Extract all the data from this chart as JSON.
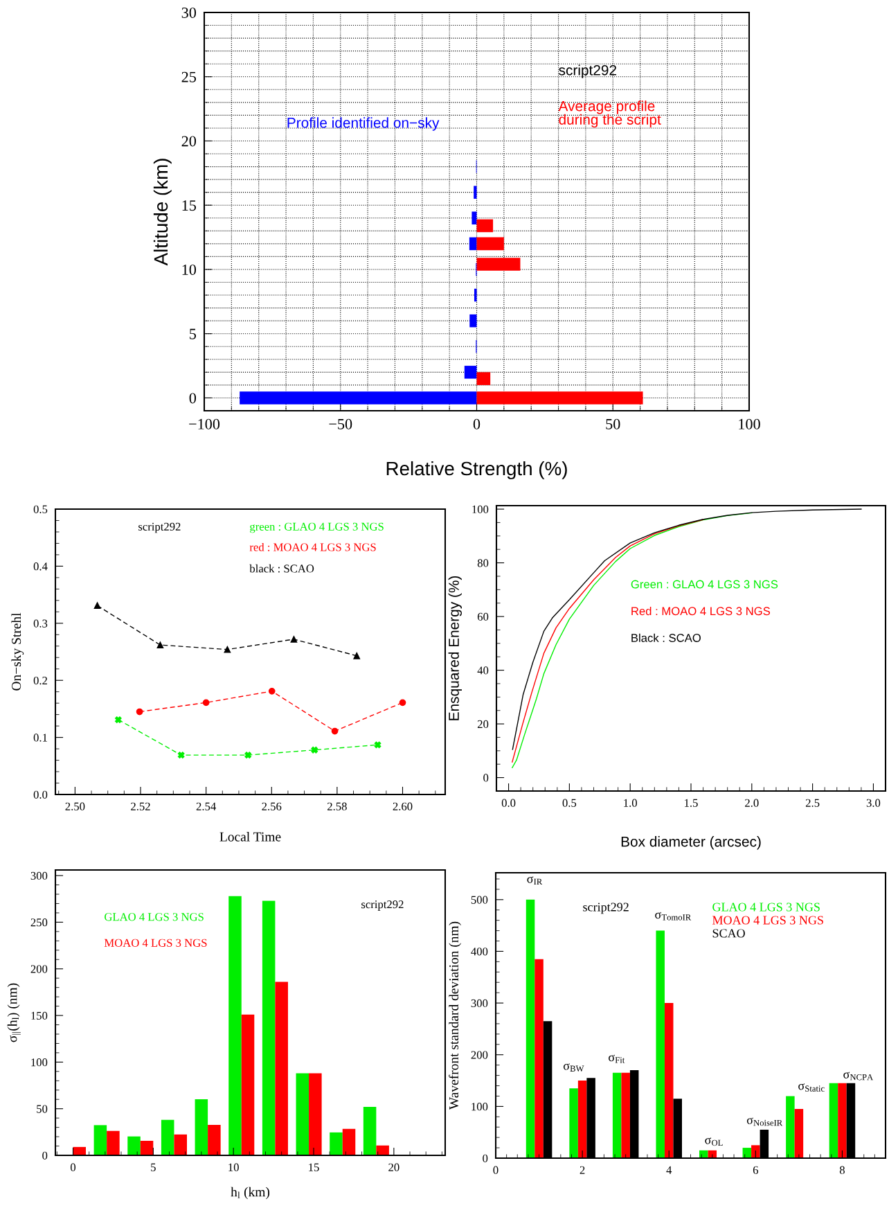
{
  "chart_data": [
    {
      "type": "bar",
      "orientation": "horizontal",
      "xlabel": "Relative Strength (%)",
      "ylabel": "Altitude (km)",
      "annotations": [
        "script292"
      ],
      "grid": true,
      "series": [
        {
          "name": "Profile identified on−sky",
          "color": "#0000ff",
          "x": [
            0,
            2,
            4,
            6,
            8,
            10,
            12,
            14,
            16,
            18
          ],
          "values": [
            -87,
            -4.5,
            -0.3,
            -2.6,
            -0.9,
            -0.3,
            -2.7,
            -1.8,
            -1.1,
            -0.2
          ]
        },
        {
          "name": "Average profile\nduring the script",
          "color": "#ff0000",
          "x": [
            0,
            1.5,
            10.4,
            12,
            13.4
          ],
          "values": [
            61,
            5,
            16,
            10,
            6
          ]
        }
      ],
      "xlim": [
        -100,
        100
      ],
      "ylim": [
        -1,
        30
      ],
      "xticks": [
        {
          "value": -100,
          "label": "−100"
        },
        {
          "value": -90,
          "label": null
        },
        {
          "value": -80,
          "label": null
        },
        {
          "value": -70,
          "label": null
        },
        {
          "value": -60,
          "label": null
        },
        {
          "value": -50,
          "label": "−50"
        },
        {
          "value": -40,
          "label": null
        },
        {
          "value": -30,
          "label": null
        },
        {
          "value": -20,
          "label": null
        },
        {
          "value": -10,
          "label": null
        },
        0,
        {
          "value": 10,
          "label": null
        },
        {
          "value": 20,
          "label": null
        },
        {
          "value": 30,
          "label": null
        },
        {
          "value": 40,
          "label": null
        },
        50,
        {
          "value": 60,
          "label": null
        },
        {
          "value": 70,
          "label": null
        },
        {
          "value": 80,
          "label": null
        },
        {
          "value": 90,
          "label": null
        },
        100
      ],
      "yticks": [
        0,
        {
          "value": 1,
          "label": null
        },
        {
          "value": 2,
          "label": null
        },
        {
          "value": 3,
          "label": null
        },
        {
          "value": 4,
          "label": null
        },
        5,
        {
          "value": 6,
          "label": null
        },
        {
          "value": 7,
          "label": null
        },
        {
          "value": 8,
          "label": null
        },
        {
          "value": 9,
          "label": null
        },
        10,
        {
          "value": 11,
          "label": null
        },
        {
          "value": 12,
          "label": null
        },
        {
          "value": 13,
          "label": null
        },
        {
          "value": 14,
          "label": null
        },
        15,
        {
          "value": 16,
          "label": null
        },
        {
          "value": 17,
          "label": null
        },
        {
          "value": 18,
          "label": null
        },
        {
          "value": 19,
          "label": null
        },
        20,
        {
          "value": 21,
          "label": null
        },
        {
          "value": 22,
          "label": null
        },
        {
          "value": 23,
          "label": null
        },
        {
          "value": 24,
          "label": null
        },
        25,
        {
          "value": 26,
          "label": null
        },
        {
          "value": 27,
          "label": null
        },
        {
          "value": 28,
          "label": null
        },
        {
          "value": 29,
          "label": null
        },
        30
      ]
    },
    {
      "type": "line",
      "line_style": "dashed",
      "xlabel": "Local Time",
      "ylabel": "On−sky Strehl",
      "annotations": [
        "script292"
      ],
      "series": [
        {
          "name": "green : GLAO 4 LGS 3 NGS",
          "color": "#00ee00",
          "marker": "cross",
          "x": [
            2.5132,
            2.5324,
            2.5528,
            2.5731,
            2.5924
          ],
          "values": [
            0.131,
            0.069,
            0.069,
            0.078,
            0.087
          ]
        },
        {
          "name": "red : MOAO 4 LGS 3 NGS",
          "color": "#ff0000",
          "marker": "circle",
          "x": [
            2.5197,
            2.54,
            2.5601,
            2.5793,
            2.6
          ],
          "values": [
            0.145,
            0.161,
            0.181,
            0.111,
            0.161
          ]
        },
        {
          "name": "black : SCAO",
          "color": "#000000",
          "marker": "triangle",
          "x": [
            2.5068,
            2.526,
            2.5465,
            2.5668,
            2.586
          ],
          "values": [
            0.331,
            0.262,
            0.254,
            0.272,
            0.243
          ]
        }
      ],
      "xlim": [
        2.494,
        2.613
      ],
      "ylim": [
        0,
        0.5
      ],
      "xticks": [
        {
          "value": 2.495,
          "label": null
        },
        {
          "value": 2.5,
          "label": "2.50"
        },
        {
          "value": 2.505,
          "label": null
        },
        {
          "value": 2.51,
          "label": null
        },
        {
          "value": 2.515,
          "label": null
        },
        2.52,
        {
          "value": 2.525,
          "label": null
        },
        {
          "value": 2.53,
          "label": null
        },
        {
          "value": 2.535,
          "label": null
        },
        2.54,
        {
          "value": 2.545,
          "label": null
        },
        {
          "value": 2.55,
          "label": null
        },
        {
          "value": 2.555,
          "label": null
        },
        2.56,
        {
          "value": 2.565,
          "label": null
        },
        {
          "value": 2.57,
          "label": null
        },
        {
          "value": 2.575,
          "label": null
        },
        2.58,
        {
          "value": 2.585,
          "label": null
        },
        {
          "value": 2.59,
          "label": null
        },
        {
          "value": 2.595,
          "label": null
        },
        {
          "value": 2.6,
          "label": "2.60"
        },
        {
          "value": 2.605,
          "label": null
        },
        {
          "value": 2.61,
          "label": null
        }
      ],
      "yticks": [
        {
          "value": 0,
          "label": "0.0"
        },
        {
          "value": 0.02,
          "label": null
        },
        {
          "value": 0.04,
          "label": null
        },
        {
          "value": 0.06,
          "label": null
        },
        {
          "value": 0.08,
          "label": null
        },
        0.1,
        {
          "value": 0.12,
          "label": null
        },
        {
          "value": 0.14,
          "label": null
        },
        {
          "value": 0.16,
          "label": null
        },
        {
          "value": 0.18,
          "label": null
        },
        0.2,
        {
          "value": 0.22,
          "label": null
        },
        {
          "value": 0.24,
          "label": null
        },
        {
          "value": 0.26,
          "label": null
        },
        {
          "value": 0.28,
          "label": null
        },
        0.3,
        {
          "value": 0.32,
          "label": null
        },
        {
          "value": 0.34,
          "label": null
        },
        {
          "value": 0.36,
          "label": null
        },
        {
          "value": 0.38,
          "label": null
        },
        0.4,
        {
          "value": 0.42,
          "label": null
        },
        {
          "value": 0.44,
          "label": null
        },
        {
          "value": 0.46,
          "label": null
        },
        {
          "value": 0.48,
          "label": null
        },
        0.5
      ]
    },
    {
      "type": "line",
      "line_style": "solid",
      "xlabel": "Box diameter (arcsec)",
      "ylabel": "Ensquared Energy (%)",
      "series": [
        {
          "name": "Green : GLAO 4 LGS 3 NGS",
          "color": "#00ee00",
          "x": [
            0.03,
            0.065,
            0.13,
            0.23,
            0.29,
            0.39,
            0.5,
            0.7,
            0.88,
            1.0,
            1.2,
            1.4,
            1.6,
            1.8,
            2.0
          ],
          "values": [
            3.7,
            6.5,
            15.8,
            29.5,
            38.7,
            49.5,
            59,
            71.6,
            80.5,
            85.3,
            90.2,
            93.5,
            96,
            97.6,
            98.6
          ]
        },
        {
          "name": "Red : MOAO 4 LGS 3 NGS",
          "color": "#ff0000",
          "x": [
            0.03,
            0.116,
            0.19,
            0.29,
            0.39,
            0.5,
            0.7,
            0.88,
            1.0,
            1.2,
            1.4,
            1.6
          ],
          "values": [
            5.8,
            20,
            31.6,
            46.3,
            55.8,
            63,
            73.7,
            82,
            86.3,
            90.8,
            93.8,
            96.1
          ]
        },
        {
          "name": "Black : SCAO",
          "color": "#000000",
          "x": [
            0.033,
            0.12,
            0.2,
            0.29,
            0.36,
            0.5,
            0.7,
            0.79,
            1.0,
            1.2,
            1.4,
            1.6,
            1.8,
            2.0,
            2.2,
            2.5,
            2.9
          ],
          "values": [
            10.5,
            31,
            43,
            54.5,
            59.5,
            66.3,
            76.3,
            80.8,
            87.4,
            91.2,
            94,
            96.2,
            97.7,
            98.7,
            99.2,
            99.7,
            100
          ]
        }
      ],
      "xlim": [
        -0.1,
        3.1
      ],
      "ylim": [
        -5,
        101.3
      ],
      "xticks": [
        {
          "value": 0,
          "label": "0.0"
        },
        {
          "value": 0.1,
          "label": null
        },
        {
          "value": 0.2,
          "label": null
        },
        {
          "value": 0.3,
          "label": null
        },
        {
          "value": 0.4,
          "label": null
        },
        0.5,
        {
          "value": 0.6,
          "label": null
        },
        {
          "value": 0.7,
          "label": null
        },
        {
          "value": 0.8,
          "label": null
        },
        {
          "value": 0.9,
          "label": null
        },
        {
          "value": 1,
          "label": "1.0"
        },
        {
          "value": 1.1,
          "label": null
        },
        {
          "value": 1.2,
          "label": null
        },
        {
          "value": 1.3,
          "label": null
        },
        {
          "value": 1.4,
          "label": null
        },
        1.5,
        {
          "value": 1.6,
          "label": null
        },
        {
          "value": 1.7,
          "label": null
        },
        {
          "value": 1.8,
          "label": null
        },
        {
          "value": 1.9,
          "label": null
        },
        {
          "value": 2,
          "label": "2.0"
        },
        {
          "value": 2.1,
          "label": null
        },
        {
          "value": 2.2,
          "label": null
        },
        {
          "value": 2.3,
          "label": null
        },
        {
          "value": 2.4,
          "label": null
        },
        2.5,
        {
          "value": 2.6,
          "label": null
        },
        {
          "value": 2.7,
          "label": null
        },
        {
          "value": 2.8,
          "label": null
        },
        {
          "value": 2.9,
          "label": null
        },
        {
          "value": 3,
          "label": "3.0"
        }
      ],
      "yticks": [
        0,
        {
          "value": 5,
          "label": null
        },
        {
          "value": 10,
          "label": null
        },
        {
          "value": 15,
          "label": null
        },
        20,
        {
          "value": 25,
          "label": null
        },
        {
          "value": 30,
          "label": null
        },
        {
          "value": 35,
          "label": null
        },
        40,
        {
          "value": 45,
          "label": null
        },
        {
          "value": 50,
          "label": null
        },
        {
          "value": 55,
          "label": null
        },
        60,
        {
          "value": 65,
          "label": null
        },
        {
          "value": 70,
          "label": null
        },
        {
          "value": 75,
          "label": null
        },
        80,
        {
          "value": 85,
          "label": null
        },
        {
          "value": 90,
          "label": null
        },
        {
          "value": 95,
          "label": null
        },
        100
      ]
    },
    {
      "type": "bar",
      "xlabel": "h$_{l}$ (km)",
      "ylabel": "σ$_{||}$(h$_{l}$) (nm)",
      "annotations": [
        "script292"
      ],
      "series": [
        {
          "name": "GLAO 4 LGS 3 NGS",
          "color": "#00ee00",
          "x": [
            0,
            2.1,
            4.2,
            6.3,
            8.4,
            10.5,
            12.6,
            14.7,
            16.8,
            18.9
          ],
          "values": [
            0,
            32.4,
            20.3,
            38,
            60.2,
            278,
            273,
            88,
            24.6,
            52
          ]
        },
        {
          "name": "MOAO 4 LGS 3 NGS",
          "color": "#ff0000",
          "x": [
            0,
            2.1,
            4.2,
            6.3,
            8.4,
            10.5,
            12.6,
            14.7,
            16.8,
            18.9
          ],
          "values": [
            9,
            26.2,
            15.6,
            22.4,
            32.7,
            151,
            186,
            88,
            28.4,
            10.6
          ]
        }
      ],
      "xlim": [
        -1.1,
        23.2
      ],
      "ylim": [
        0,
        306
      ],
      "xticks": [
        {
          "value": -1,
          "label": null
        },
        0,
        {
          "value": 1,
          "label": null
        },
        {
          "value": 2,
          "label": null
        },
        {
          "value": 3,
          "label": null
        },
        {
          "value": 4,
          "label": null
        },
        5,
        {
          "value": 6,
          "label": null
        },
        {
          "value": 7,
          "label": null
        },
        {
          "value": 8,
          "label": null
        },
        {
          "value": 9,
          "label": null
        },
        10,
        {
          "value": 11,
          "label": null
        },
        {
          "value": 12,
          "label": null
        },
        {
          "value": 13,
          "label": null
        },
        {
          "value": 14,
          "label": null
        },
        15,
        {
          "value": 16,
          "label": null
        },
        {
          "value": 17,
          "label": null
        },
        {
          "value": 18,
          "label": null
        },
        {
          "value": 19,
          "label": null
        },
        20,
        {
          "value": 21,
          "label": null
        },
        {
          "value": 22,
          "label": null
        },
        {
          "value": 23,
          "label": null
        }
      ],
      "yticks": [
        0,
        {
          "value": 10,
          "label": null
        },
        {
          "value": 20,
          "label": null
        },
        {
          "value": 30,
          "label": null
        },
        {
          "value": 40,
          "label": null
        },
        50,
        {
          "value": 60,
          "label": null
        },
        {
          "value": 70,
          "label": null
        },
        {
          "value": 80,
          "label": null
        },
        {
          "value": 90,
          "label": null
        },
        100,
        {
          "value": 110,
          "label": null
        },
        {
          "value": 120,
          "label": null
        },
        {
          "value": 130,
          "label": null
        },
        {
          "value": 140,
          "label": null
        },
        150,
        {
          "value": 160,
          "label": null
        },
        {
          "value": 170,
          "label": null
        },
        {
          "value": 180,
          "label": null
        },
        {
          "value": 190,
          "label": null
        },
        200,
        {
          "value": 210,
          "label": null
        },
        {
          "value": 220,
          "label": null
        },
        {
          "value": 230,
          "label": null
        },
        {
          "value": 240,
          "label": null
        },
        250,
        {
          "value": 260,
          "label": null
        },
        {
          "value": 270,
          "label": null
        },
        {
          "value": 280,
          "label": null
        },
        {
          "value": 290,
          "label": null
        },
        300
      ]
    },
    {
      "type": "bar",
      "ylabel": "Wavefront standard deviation (nm)",
      "annotations": [
        "script292",
        "σ$_{IR}$",
        "σ$_{BW}$",
        "σ$_{Fit}$",
        "σ$_{TomoIR}$",
        "σ$_{OL}$",
        "σ$_{NoiseIR}$",
        "σ$_{Static}$",
        "σ$_{NCPA}$"
      ],
      "series": [
        {
          "name": "GLAO 4 LGS 3 NGS",
          "color": "#00ee00",
          "x": [
            1,
            2,
            3,
            4,
            5,
            6,
            7,
            8
          ],
          "values": [
            500,
            135,
            165,
            440,
            15,
            20,
            120,
            145
          ]
        },
        {
          "name": "MOAO 4 LGS 3 NGS",
          "color": "#ff0000",
          "x": [
            1,
            2,
            3,
            4,
            5,
            6,
            7,
            8
          ],
          "values": [
            385,
            150,
            165,
            300,
            15,
            25,
            95,
            145
          ]
        },
        {
          "name": "SCAO",
          "color": "#000000",
          "x": [
            1,
            2,
            3,
            4,
            5,
            6,
            7,
            8
          ],
          "values": [
            265,
            155,
            170,
            115,
            0,
            55,
            0,
            145
          ]
        }
      ],
      "xlim": [
        0,
        9
      ],
      "ylim": [
        0,
        552
      ],
      "xticks": [
        0,
        {
          "value": 0.25,
          "label": null
        },
        {
          "value": 0.5,
          "label": null
        },
        {
          "value": 0.75,
          "label": null
        },
        {
          "value": 1,
          "label": null
        },
        {
          "value": 1.25,
          "label": null
        },
        {
          "value": 1.5,
          "label": null
        },
        {
          "value": 1.75,
          "label": null
        },
        2,
        {
          "value": 2.25,
          "label": null
        },
        {
          "value": 2.5,
          "label": null
        },
        {
          "value": 2.75,
          "label": null
        },
        {
          "value": 3,
          "label": null
        },
        {
          "value": 3.25,
          "label": null
        },
        {
          "value": 3.5,
          "label": null
        },
        {
          "value": 3.75,
          "label": null
        },
        4,
        {
          "value": 4.25,
          "label": null
        },
        {
          "value": 4.5,
          "label": null
        },
        {
          "value": 4.75,
          "label": null
        },
        {
          "value": 5,
          "label": null
        },
        {
          "value": 5.25,
          "label": null
        },
        {
          "value": 5.5,
          "label": null
        },
        {
          "value": 5.75,
          "label": null
        },
        6,
        {
          "value": 6.25,
          "label": null
        },
        {
          "value": 6.5,
          "label": null
        },
        {
          "value": 6.75,
          "label": null
        },
        {
          "value": 7,
          "label": null
        },
        {
          "value": 7.25,
          "label": null
        },
        {
          "value": 7.5,
          "label": null
        },
        {
          "value": 7.75,
          "label": null
        },
        8,
        {
          "value": 8.25,
          "label": null
        },
        {
          "value": 8.5,
          "label": null
        },
        {
          "value": 8.75,
          "label": null
        }
      ],
      "yticks": [
        0,
        {
          "value": 20,
          "label": null
        },
        {
          "value": 40,
          "label": null
        },
        {
          "value": 60,
          "label": null
        },
        {
          "value": 80,
          "label": null
        },
        100,
        {
          "value": 120,
          "label": null
        },
        {
          "value": 140,
          "label": null
        },
        {
          "value": 160,
          "label": null
        },
        {
          "value": 180,
          "label": null
        },
        200,
        {
          "value": 220,
          "label": null
        },
        {
          "value": 240,
          "label": null
        },
        {
          "value": 260,
          "label": null
        },
        {
          "value": 280,
          "label": null
        },
        300,
        {
          "value": 320,
          "label": null
        },
        {
          "value": 340,
          "label": null
        },
        {
          "value": 360,
          "label": null
        },
        {
          "value": 380,
          "label": null
        },
        400,
        {
          "value": 420,
          "label": null
        },
        {
          "value": 440,
          "label": null
        },
        {
          "value": 460,
          "label": null
        },
        {
          "value": 480,
          "label": null
        },
        500,
        {
          "value": 520,
          "label": null
        },
        {
          "value": 540,
          "label": null
        }
      ]
    }
  ]
}
